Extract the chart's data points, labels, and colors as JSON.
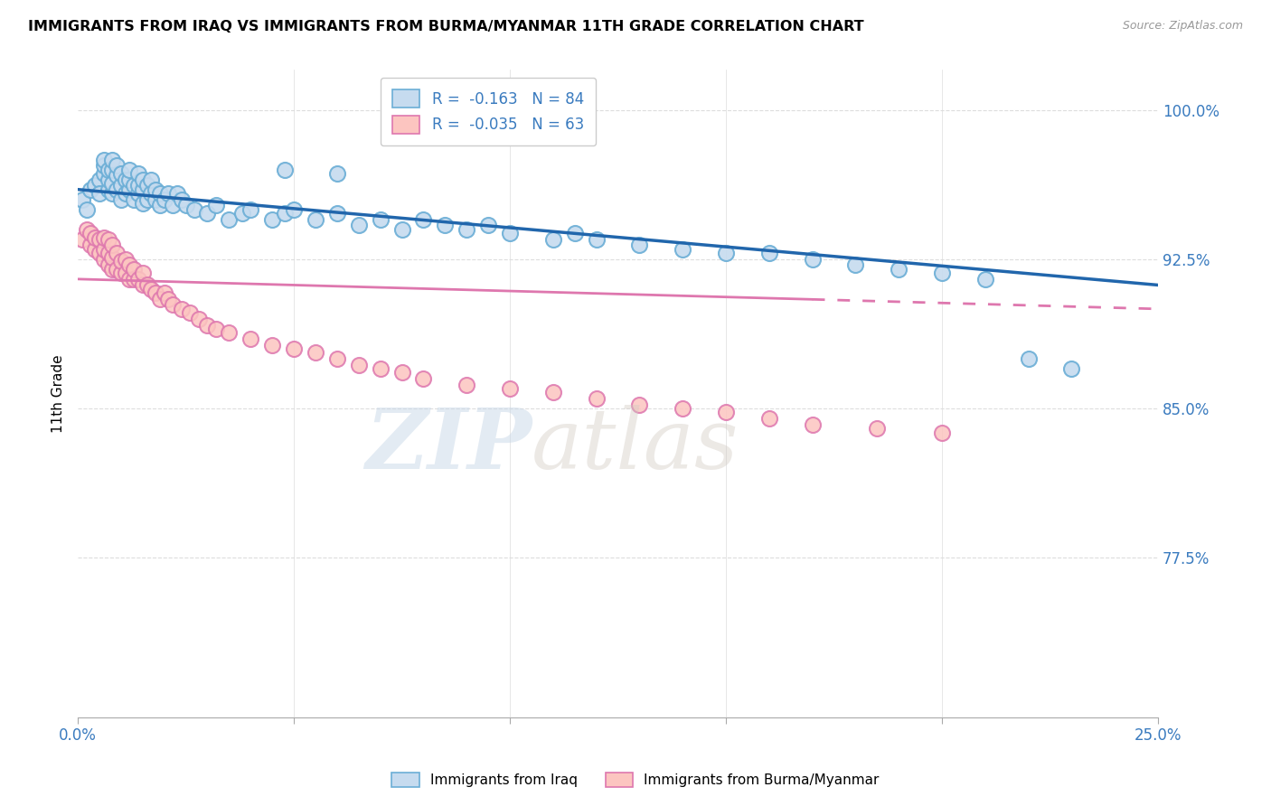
{
  "title": "IMMIGRANTS FROM IRAQ VS IMMIGRANTS FROM BURMA/MYANMAR 11TH GRADE CORRELATION CHART",
  "source": "Source: ZipAtlas.com",
  "ylabel": "11th Grade",
  "ytick_labels": [
    "100.0%",
    "92.5%",
    "85.0%",
    "77.5%"
  ],
  "ytick_values": [
    1.0,
    0.925,
    0.85,
    0.775
  ],
  "xlim": [
    0.0,
    0.25
  ],
  "ylim": [
    0.695,
    1.02
  ],
  "legend_iraq_r": "R =  -0.163",
  "legend_iraq_n": "N = 84",
  "legend_burma_r": "R =  -0.035",
  "legend_burma_n": "N = 63",
  "blue_color": "#6baed6",
  "blue_fill": "#c6dbef",
  "pink_color": "#de77ae",
  "pink_fill": "#fcc5c0",
  "trendline_blue": "#2166ac",
  "trendline_pink": "#de77ae",
  "trendline_blue_x0": 0.0,
  "trendline_blue_y0": 0.96,
  "trendline_blue_x1": 0.25,
  "trendline_blue_y1": 0.912,
  "trendline_pink_x0": 0.0,
  "trendline_pink_y0": 0.915,
  "trendline_pink_x1": 0.25,
  "trendline_pink_y1": 0.9,
  "blue_scatter_x": [
    0.001,
    0.002,
    0.003,
    0.004,
    0.005,
    0.005,
    0.006,
    0.006,
    0.006,
    0.007,
    0.007,
    0.007,
    0.008,
    0.008,
    0.008,
    0.008,
    0.009,
    0.009,
    0.009,
    0.01,
    0.01,
    0.01,
    0.011,
    0.011,
    0.012,
    0.012,
    0.012,
    0.013,
    0.013,
    0.014,
    0.014,
    0.014,
    0.015,
    0.015,
    0.015,
    0.016,
    0.016,
    0.017,
    0.017,
    0.018,
    0.018,
    0.019,
    0.019,
    0.02,
    0.021,
    0.022,
    0.023,
    0.024,
    0.025,
    0.027,
    0.03,
    0.032,
    0.035,
    0.038,
    0.04,
    0.045,
    0.048,
    0.05,
    0.055,
    0.06,
    0.065,
    0.07,
    0.075,
    0.08,
    0.085,
    0.09,
    0.095,
    0.1,
    0.11,
    0.115,
    0.12,
    0.13,
    0.14,
    0.15,
    0.16,
    0.17,
    0.18,
    0.19,
    0.2,
    0.21,
    0.22,
    0.23,
    0.048,
    0.06
  ],
  "blue_scatter_y": [
    0.955,
    0.95,
    0.96,
    0.962,
    0.965,
    0.958,
    0.968,
    0.972,
    0.975,
    0.96,
    0.965,
    0.97,
    0.958,
    0.963,
    0.97,
    0.975,
    0.96,
    0.967,
    0.972,
    0.955,
    0.962,
    0.968,
    0.958,
    0.965,
    0.96,
    0.965,
    0.97,
    0.955,
    0.962,
    0.958,
    0.962,
    0.968,
    0.953,
    0.96,
    0.965,
    0.955,
    0.962,
    0.958,
    0.965,
    0.955,
    0.96,
    0.952,
    0.958,
    0.955,
    0.958,
    0.952,
    0.958,
    0.955,
    0.952,
    0.95,
    0.948,
    0.952,
    0.945,
    0.948,
    0.95,
    0.945,
    0.948,
    0.95,
    0.945,
    0.948,
    0.942,
    0.945,
    0.94,
    0.945,
    0.942,
    0.94,
    0.942,
    0.938,
    0.935,
    0.938,
    0.935,
    0.932,
    0.93,
    0.928,
    0.928,
    0.925,
    0.922,
    0.92,
    0.918,
    0.915,
    0.875,
    0.87,
    0.97,
    0.968
  ],
  "pink_scatter_x": [
    0.001,
    0.002,
    0.003,
    0.003,
    0.004,
    0.004,
    0.005,
    0.005,
    0.006,
    0.006,
    0.006,
    0.007,
    0.007,
    0.007,
    0.008,
    0.008,
    0.008,
    0.009,
    0.009,
    0.01,
    0.01,
    0.011,
    0.011,
    0.012,
    0.012,
    0.013,
    0.013,
    0.014,
    0.015,
    0.015,
    0.016,
    0.017,
    0.018,
    0.019,
    0.02,
    0.021,
    0.022,
    0.024,
    0.026,
    0.028,
    0.03,
    0.032,
    0.035,
    0.04,
    0.045,
    0.05,
    0.055,
    0.06,
    0.065,
    0.07,
    0.075,
    0.08,
    0.09,
    0.1,
    0.11,
    0.12,
    0.13,
    0.14,
    0.15,
    0.16,
    0.17,
    0.185,
    0.2
  ],
  "pink_scatter_y": [
    0.935,
    0.94,
    0.932,
    0.938,
    0.93,
    0.936,
    0.928,
    0.935,
    0.925,
    0.93,
    0.936,
    0.922,
    0.928,
    0.935,
    0.92,
    0.926,
    0.932,
    0.92,
    0.928,
    0.918,
    0.924,
    0.918,
    0.925,
    0.915,
    0.922,
    0.915,
    0.92,
    0.915,
    0.912,
    0.918,
    0.912,
    0.91,
    0.908,
    0.905,
    0.908,
    0.905,
    0.902,
    0.9,
    0.898,
    0.895,
    0.892,
    0.89,
    0.888,
    0.885,
    0.882,
    0.88,
    0.878,
    0.875,
    0.872,
    0.87,
    0.868,
    0.865,
    0.862,
    0.86,
    0.858,
    0.855,
    0.852,
    0.85,
    0.848,
    0.845,
    0.842,
    0.84,
    0.838
  ],
  "watermark_zip": "ZIP",
  "watermark_atlas": "atlas",
  "grid_color": "#dddddd"
}
